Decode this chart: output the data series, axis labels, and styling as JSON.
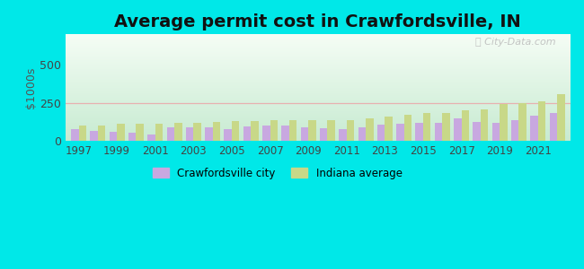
{
  "title": "Average permit cost in Crawfordsville, IN",
  "ylabel": "$1000s",
  "background_outer": "#00e8e8",
  "years": [
    1997,
    1998,
    1999,
    2000,
    2001,
    2002,
    2003,
    2004,
    2005,
    2006,
    2007,
    2008,
    2009,
    2010,
    2011,
    2012,
    2013,
    2014,
    2015,
    2016,
    2017,
    2018,
    2019,
    2020,
    2021,
    2022
  ],
  "city_values": [
    75,
    65,
    60,
    55,
    40,
    90,
    90,
    90,
    75,
    95,
    100,
    100,
    90,
    85,
    75,
    90,
    105,
    110,
    120,
    120,
    150,
    125,
    115,
    135,
    165,
    185
  ],
  "state_values": [
    100,
    100,
    110,
    110,
    110,
    115,
    120,
    125,
    130,
    130,
    135,
    135,
    135,
    135,
    135,
    148,
    160,
    170,
    180,
    185,
    200,
    205,
    240,
    248,
    262,
    305
  ],
  "city_color": "#c8a8e0",
  "state_color": "#c8d888",
  "ylim": [
    0,
    700
  ],
  "yticks": [
    0,
    250,
    500
  ],
  "xtick_years": [
    1997,
    1999,
    2001,
    2003,
    2005,
    2007,
    2009,
    2011,
    2013,
    2015,
    2017,
    2019,
    2021
  ],
  "grid_y": 250,
  "grid_color": "#e8b0b0",
  "title_fontsize": 14,
  "legend_city": "Crawfordsville city",
  "legend_state": "Indiana average"
}
